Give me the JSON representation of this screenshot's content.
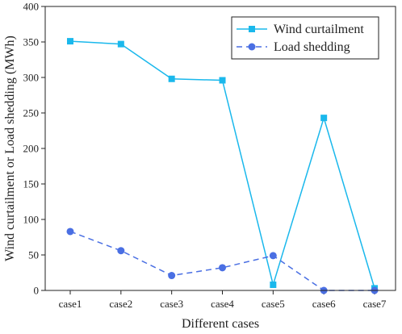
{
  "chart_data": {
    "type": "line",
    "categories": [
      "case1",
      "case2",
      "case3",
      "case4",
      "case5",
      "case6",
      "case7"
    ],
    "series": [
      {
        "name": "Wind curtailment",
        "values": [
          351,
          347,
          298,
          296,
          8,
          243,
          3
        ],
        "color": "#1ab8ec",
        "marker": "square",
        "line": "solid"
      },
      {
        "name": "Load shedding",
        "values": [
          83,
          56,
          21,
          32,
          49,
          0,
          0
        ],
        "color": "#4a6fe3",
        "marker": "circle",
        "line": "dashed"
      }
    ],
    "xlabel": "Different cases",
    "ylabel": "Wind curtailment or Load shedding (MWh)",
    "ylim": [
      0,
      400
    ],
    "yticks": [
      0,
      50,
      100,
      150,
      200,
      250,
      300,
      350,
      400
    ],
    "grid": false,
    "legend_position": "top-right"
  }
}
